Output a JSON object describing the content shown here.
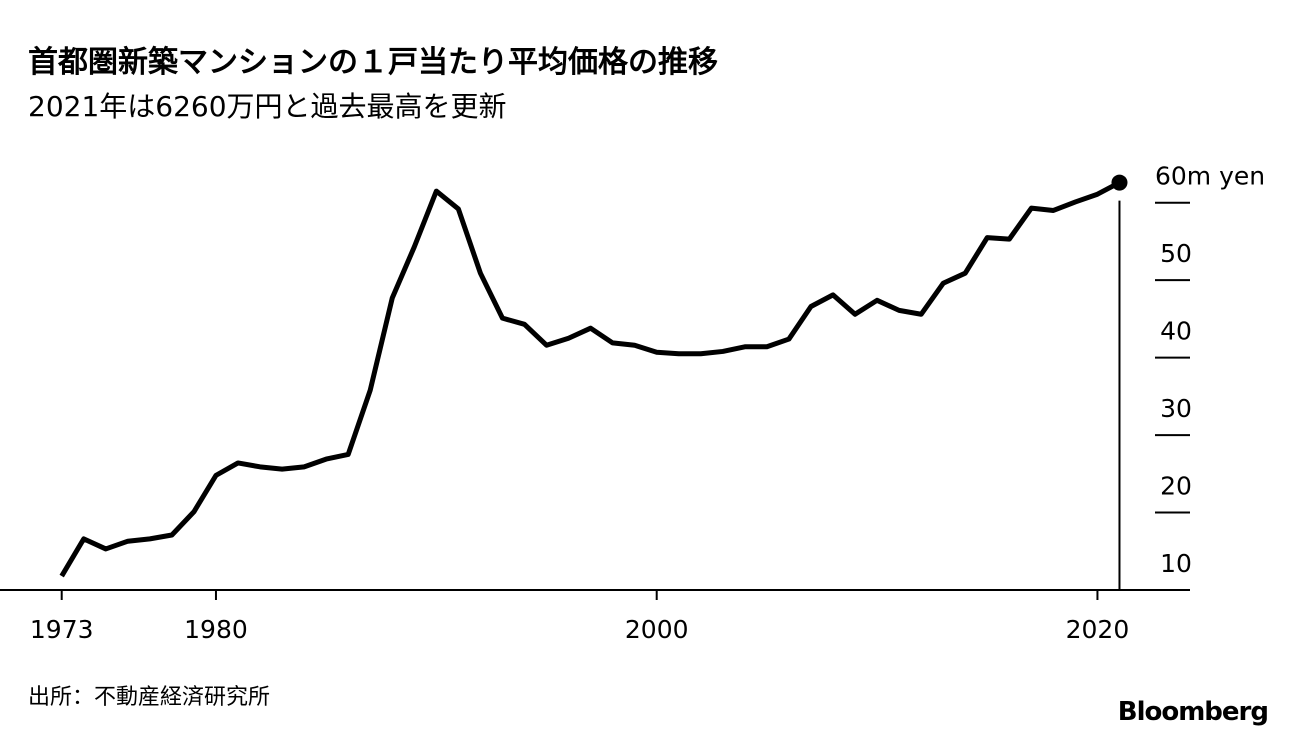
{
  "chart_data": {
    "type": "line",
    "title": "首都圏新築マンションの１戸当たり平均価格の推移",
    "subtitle": "2021年は6260万円と過去最高を更新",
    "source": "出所：不動産経済研究所",
    "brand": "Bloomberg",
    "x": [
      1973,
      1974,
      1975,
      1976,
      1977,
      1978,
      1979,
      1980,
      1981,
      1982,
      1983,
      1984,
      1985,
      1986,
      1987,
      1988,
      1989,
      1990,
      1991,
      1992,
      1993,
      1994,
      1995,
      1996,
      1997,
      1998,
      1999,
      2000,
      2001,
      2002,
      2003,
      2004,
      2005,
      2006,
      2007,
      2008,
      2009,
      2010,
      2011,
      2012,
      2013,
      2014,
      2015,
      2016,
      2017,
      2018,
      2019,
      2020,
      2021
    ],
    "series": [
      {
        "color": "#000000",
        "values": [
          11.8,
          16.6,
          15.3,
          16.3,
          16.6,
          17.1,
          20.1,
          24.8,
          26.4,
          25.9,
          25.6,
          25.9,
          26.9,
          27.5,
          35.8,
          47.7,
          54.3,
          61.5,
          59.2,
          50.9,
          45.1,
          44.3,
          41.6,
          42.5,
          43.8,
          41.9,
          41.6,
          40.7,
          40.5,
          40.5,
          40.8,
          41.4,
          41.4,
          42.4,
          46.6,
          48.1,
          45.6,
          47.4,
          46.1,
          45.6,
          49.6,
          50.9,
          55.5,
          55.3,
          59.3,
          59.0,
          60.1,
          61.1,
          62.6
        ]
      }
    ],
    "xlim": [
      1970.2,
      2024.2
    ],
    "xticks": [
      1973,
      1980,
      2000,
      2020
    ],
    "ylim": [
      10,
      65
    ],
    "yticks": [
      10,
      20,
      30,
      40,
      50,
      {
        "value": 60,
        "label": "60m yen"
      }
    ]
  }
}
